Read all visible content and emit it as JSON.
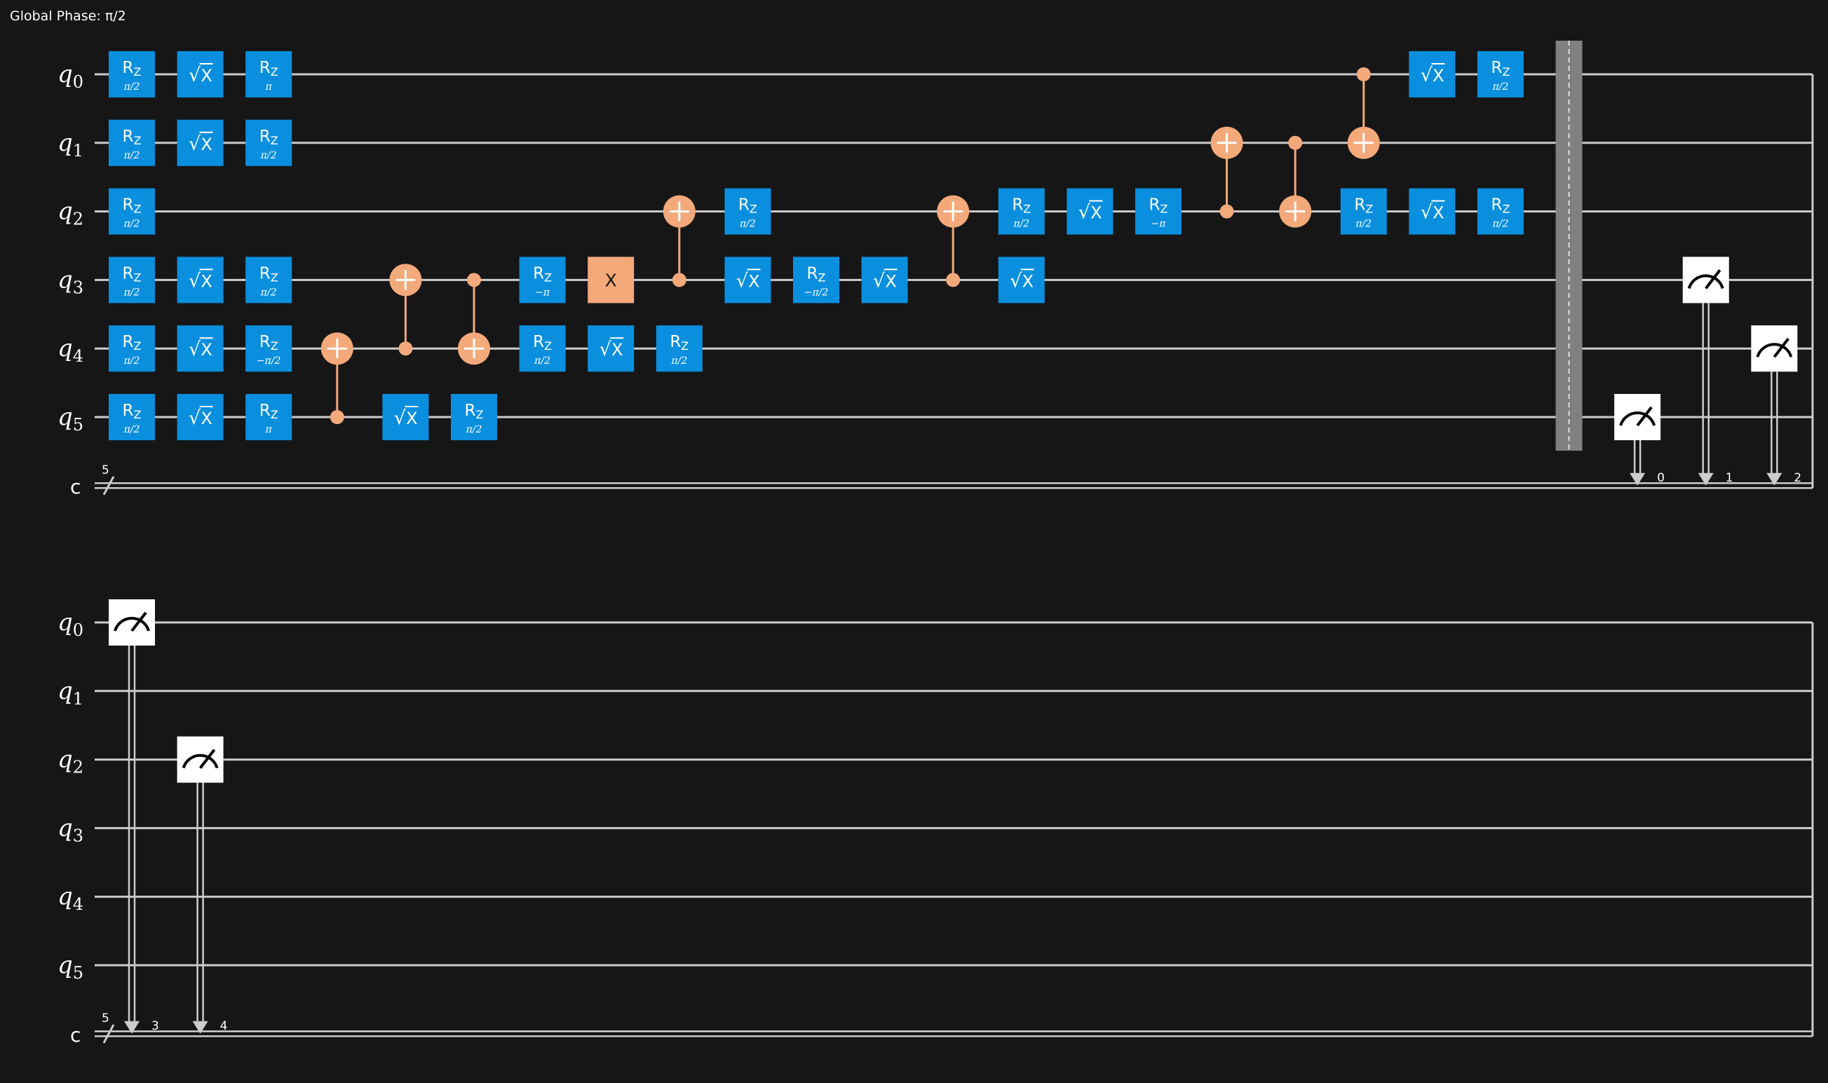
{
  "global_phase": "Global Phase: π/2",
  "qubit_label": "q",
  "qubit_indices": [
    "0",
    "1",
    "2",
    "3",
    "4",
    "5"
  ],
  "classical_label": "c",
  "classical_size": "5",
  "gate_text": {
    "rz": "R",
    "rz_sub": "Z",
    "sx_radical": "√",
    "sx_x": "X",
    "x": "X"
  },
  "colors": {
    "background": "#161616",
    "wire": "#cccccc",
    "single_qubit_gate": "#0a8fde",
    "two_qubit_gate": "#f4a97a",
    "barrier": "#808080",
    "measure_box": "#ffffff"
  },
  "blocks": [
    {
      "gates": [
        {
          "type": "rz",
          "q": 0,
          "col": 0,
          "param": "π/2"
        },
        {
          "type": "sx",
          "q": 0,
          "col": 1
        },
        {
          "type": "rz",
          "q": 0,
          "col": 2,
          "param": "π"
        },
        {
          "type": "rz",
          "q": 1,
          "col": 0,
          "param": "π/2"
        },
        {
          "type": "sx",
          "q": 1,
          "col": 1
        },
        {
          "type": "rz",
          "q": 1,
          "col": 2,
          "param": "π/2"
        },
        {
          "type": "rz",
          "q": 2,
          "col": 0,
          "param": "π/2"
        },
        {
          "type": "rz",
          "q": 3,
          "col": 0,
          "param": "π/2"
        },
        {
          "type": "sx",
          "q": 3,
          "col": 1
        },
        {
          "type": "rz",
          "q": 3,
          "col": 2,
          "param": "π/2"
        },
        {
          "type": "rz",
          "q": 4,
          "col": 0,
          "param": "π/2"
        },
        {
          "type": "sx",
          "q": 4,
          "col": 1
        },
        {
          "type": "rz",
          "q": 4,
          "col": 2,
          "param": "−π/2"
        },
        {
          "type": "rz",
          "q": 5,
          "col": 0,
          "param": "π/2"
        },
        {
          "type": "sx",
          "q": 5,
          "col": 1
        },
        {
          "type": "rz",
          "q": 5,
          "col": 2,
          "param": "π"
        },
        {
          "type": "cx",
          "control": 5,
          "target": 4,
          "col": 3
        },
        {
          "type": "cx",
          "control": 4,
          "target": 3,
          "col": 4
        },
        {
          "type": "sx",
          "q": 5,
          "col": 4
        },
        {
          "type": "cx",
          "control": 3,
          "target": 4,
          "col": 5
        },
        {
          "type": "rz",
          "q": 5,
          "col": 5,
          "param": "π/2"
        },
        {
          "type": "rz",
          "q": 3,
          "col": 6,
          "param": "−π"
        },
        {
          "type": "rz",
          "q": 4,
          "col": 6,
          "param": "π/2"
        },
        {
          "type": "x",
          "q": 3,
          "col": 7
        },
        {
          "type": "sx",
          "q": 4,
          "col": 7
        },
        {
          "type": "cx",
          "control": 3,
          "target": 2,
          "col": 8
        },
        {
          "type": "rz",
          "q": 4,
          "col": 8,
          "param": "π/2"
        },
        {
          "type": "rz",
          "q": 2,
          "col": 9,
          "param": "π/2"
        },
        {
          "type": "sx",
          "q": 3,
          "col": 9
        },
        {
          "type": "rz",
          "q": 3,
          "col": 10,
          "param": "−π/2"
        },
        {
          "type": "sx",
          "q": 3,
          "col": 11
        },
        {
          "type": "cx",
          "control": 3,
          "target": 2,
          "col": 12
        },
        {
          "type": "rz",
          "q": 2,
          "col": 13,
          "param": "π/2"
        },
        {
          "type": "sx",
          "q": 3,
          "col": 13
        },
        {
          "type": "sx",
          "q": 2,
          "col": 14
        },
        {
          "type": "rz",
          "q": 2,
          "col": 15,
          "param": "−π"
        },
        {
          "type": "cx",
          "control": 2,
          "target": 1,
          "col": 16
        },
        {
          "type": "cx",
          "control": 1,
          "target": 2,
          "col": 17
        },
        {
          "type": "cx",
          "control": 0,
          "target": 1,
          "col": 18
        },
        {
          "type": "rz",
          "q": 2,
          "col": 18,
          "param": "π/2"
        },
        {
          "type": "sx",
          "q": 0,
          "col": 19
        },
        {
          "type": "sx",
          "q": 2,
          "col": 19
        },
        {
          "type": "rz",
          "q": 0,
          "col": 20,
          "param": "π/2"
        },
        {
          "type": "rz",
          "q": 2,
          "col": 20,
          "param": "π/2"
        },
        {
          "type": "barrier",
          "col": 21
        },
        {
          "type": "measure",
          "q": 5,
          "clbit": "0",
          "col": 22
        },
        {
          "type": "measure",
          "q": 3,
          "clbit": "1",
          "col": 23
        },
        {
          "type": "measure",
          "q": 4,
          "clbit": "2",
          "col": 24
        }
      ]
    },
    {
      "gates": [
        {
          "type": "measure",
          "q": 0,
          "clbit": "3",
          "col": 0
        },
        {
          "type": "measure",
          "q": 2,
          "clbit": "4",
          "col": 1
        }
      ]
    }
  ]
}
